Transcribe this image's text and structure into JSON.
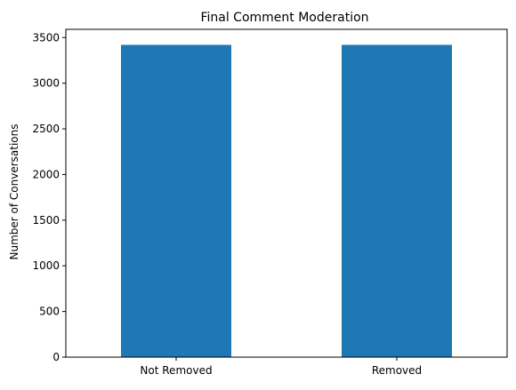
{
  "chart_data": {
    "type": "bar",
    "title": "Final Comment Moderation",
    "xlabel": "",
    "ylabel": "Number of Conversations",
    "categories": [
      "Not Removed",
      "Removed"
    ],
    "values": [
      3420,
      3420
    ],
    "ylim": [
      0,
      3590
    ],
    "yticks": [
      0,
      500,
      1000,
      1500,
      2000,
      2500,
      3000,
      3500
    ],
    "grid": false,
    "legend": "none",
    "bar_color": "#1f77b4"
  }
}
